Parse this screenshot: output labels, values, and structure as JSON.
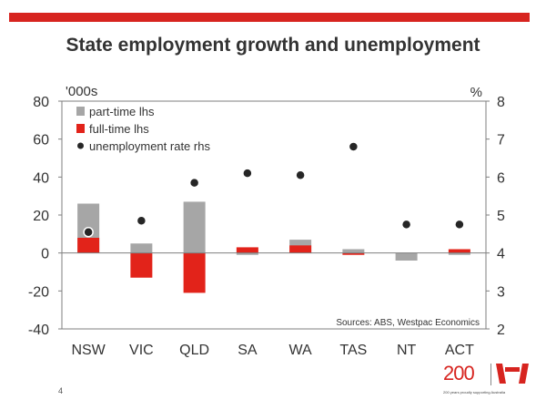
{
  "page": {
    "title": "State employment growth and unemployment",
    "slide_number": "4",
    "logo_number": "200",
    "logo_tagline": "200 years proudly supporting Australia",
    "accent_color": "#d7241f"
  },
  "chart_data": {
    "type": "bar",
    "categories": [
      "NSW",
      "VIC",
      "QLD",
      "SA",
      "WA",
      "TAS",
      "NT",
      "ACT"
    ],
    "left_axis": {
      "unit_label": "'000s",
      "ylim": [
        -40,
        80
      ],
      "ticks": [
        80,
        60,
        40,
        20,
        0,
        -20,
        -40
      ]
    },
    "right_axis": {
      "unit_label": "%",
      "ylim": [
        2,
        8
      ],
      "ticks": [
        8,
        7,
        6,
        5,
        4,
        3,
        2
      ]
    },
    "series": [
      {
        "name": "part-time lhs",
        "kind": "bar",
        "axis": "left",
        "color": "#a6a6a6",
        "values": [
          26,
          5,
          27,
          -1,
          7,
          2,
          -4,
          -1
        ]
      },
      {
        "name": "full-time lhs",
        "kind": "bar",
        "axis": "left",
        "color": "#e2231a",
        "values": [
          8,
          -13,
          -21,
          3,
          4,
          -1,
          0,
          2
        ]
      },
      {
        "name": "unemployment rate rhs",
        "kind": "scatter",
        "axis": "right",
        "color": "#262626",
        "values": [
          4.55,
          4.85,
          5.85,
          6.1,
          6.05,
          6.8,
          4.75,
          4.75
        ]
      }
    ],
    "annotation": "Sources: ABS, Westpac Economics",
    "legend_position": "top-left",
    "grid": false
  }
}
